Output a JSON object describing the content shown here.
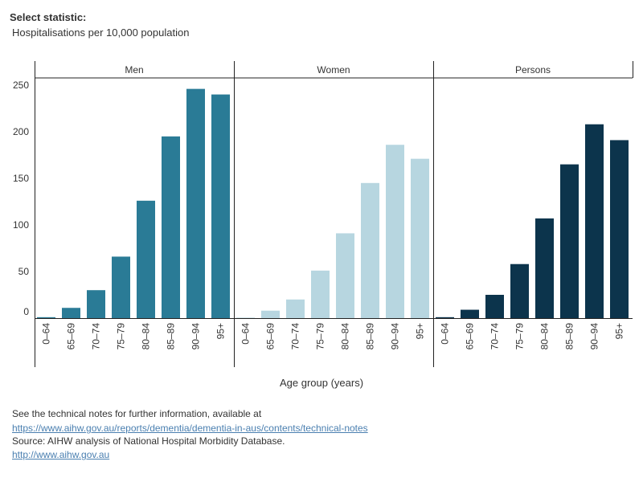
{
  "header": {
    "select_label": "Select statistic:",
    "select_value": "Hospitalisations per 10,000 population"
  },
  "footer": {
    "note": "See the technical notes for further information, available at",
    "tech_link": "https://www.aihw.gov.au/reports/dementia/dementia-in-aus/contents/technical-notes",
    "source": "Source:  AIHW analysis of National Hospital Morbidity Database.",
    "site_link": "http://www.aihw.gov.au"
  },
  "chart_data": {
    "type": "bar",
    "xlabel": "Age group (years)",
    "ylabel": "",
    "ylim": [
      0,
      270
    ],
    "yticks": [
      0,
      50,
      100,
      150,
      200,
      250
    ],
    "categories": [
      "0–64",
      "65–69",
      "70–74",
      "75–79",
      "80–84",
      "85–89",
      "90–94",
      "95+"
    ],
    "panels": [
      {
        "name": "Men",
        "color": "#2a7b96",
        "values": [
          1,
          11,
          30,
          66,
          126,
          195,
          246,
          240
        ]
      },
      {
        "name": "Women",
        "color": "#b7d6e0",
        "values": [
          0.5,
          8,
          20,
          51,
          91,
          145,
          186,
          171
        ]
      },
      {
        "name": "Persons",
        "color": "#0c344c",
        "values": [
          1,
          9,
          25,
          58,
          107,
          165,
          208,
          191
        ]
      }
    ]
  }
}
